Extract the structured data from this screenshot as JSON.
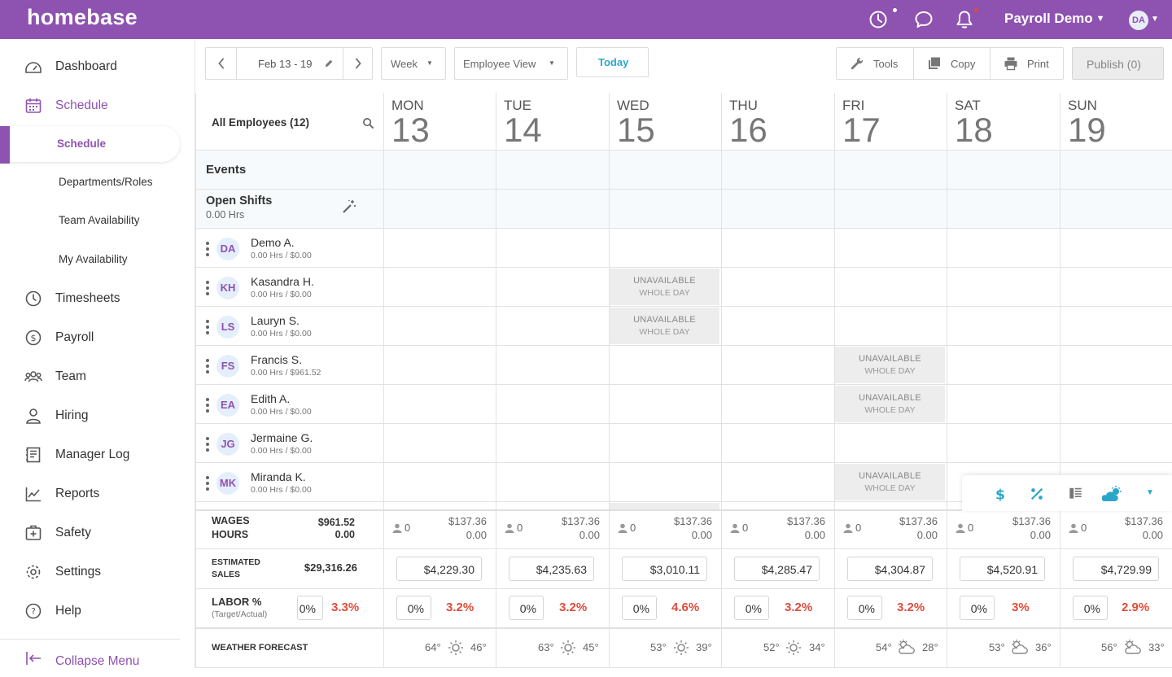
{
  "topbar": {
    "logo": "homebase",
    "account_name": "Payroll Demo",
    "avatar_initials": "DA",
    "colors": {
      "brand": "#8e52b0",
      "alert_dot": "#e04b3a"
    }
  },
  "sidebar": {
    "items": [
      {
        "label": "Dashboard",
        "icon": "dashboard-icon"
      },
      {
        "label": "Schedule",
        "icon": "calendar-icon"
      },
      {
        "label": "Timesheets",
        "icon": "clock-icon"
      },
      {
        "label": "Payroll",
        "icon": "dollar-circle-icon"
      },
      {
        "label": "Team",
        "icon": "team-icon"
      },
      {
        "label": "Hiring",
        "icon": "person-icon"
      },
      {
        "label": "Manager Log",
        "icon": "log-book-icon"
      },
      {
        "label": "Reports",
        "icon": "chart-icon"
      },
      {
        "label": "Safety",
        "icon": "first-aid-icon"
      },
      {
        "label": "Settings",
        "icon": "gear-icon"
      },
      {
        "label": "Help",
        "icon": "help-icon"
      }
    ],
    "schedule_sub": [
      "Schedule",
      "Departments/Roles",
      "Team Availability",
      "My Availability"
    ],
    "collapse_label": "Collapse Menu"
  },
  "toolbar": {
    "date_range": "Feb 13 - 19",
    "range_type": "Week",
    "view_type": "Employee View",
    "today": "Today",
    "tools": "Tools",
    "copy": "Copy",
    "print": "Print",
    "publish": "Publish (0)"
  },
  "grid": {
    "employee_filter": "All Employees (12)",
    "events_label": "Events",
    "open_shifts_label": "Open Shifts",
    "open_shifts_hours": "0.00 Hrs",
    "days": [
      {
        "name": "MON",
        "date": "13"
      },
      {
        "name": "TUE",
        "date": "14"
      },
      {
        "name": "WED",
        "date": "15"
      },
      {
        "name": "THU",
        "date": "16"
      },
      {
        "name": "FRI",
        "date": "17"
      },
      {
        "name": "SAT",
        "date": "18"
      },
      {
        "name": "SUN",
        "date": "19"
      }
    ],
    "employees": [
      {
        "initials": "DA",
        "name": "Demo A.",
        "summary": "0.00 Hrs / $0.00"
      },
      {
        "initials": "KH",
        "name": "Kasandra H.",
        "summary": "0.00 Hrs / $0.00"
      },
      {
        "initials": "LS",
        "name": "Lauryn S.",
        "summary": "0.00 Hrs / $0.00"
      },
      {
        "initials": "FS",
        "name": "Francis S.",
        "summary": "0.00 Hrs / $961.52"
      },
      {
        "initials": "EA",
        "name": "Edith A.",
        "summary": "0.00 Hrs / $0.00"
      },
      {
        "initials": "JG",
        "name": "Jermaine G.",
        "summary": "0.00 Hrs / $0.00"
      },
      {
        "initials": "MK",
        "name": "Miranda K.",
        "summary": "0.00 Hrs / $0.00"
      }
    ],
    "unavailable_title": "UNAVAILABLE",
    "unavailable_sub": "WHOLE DAY"
  },
  "footer": {
    "wages_label": "WAGES",
    "hours_label": "HOURS",
    "wages_total": "$961.52",
    "hours_total": "0.00",
    "est_sales_label1": "ESTIMATED",
    "est_sales_label2": "SALES",
    "est_sales_total": "$29,316.26",
    "labor_label": "LABOR %",
    "labor_sub": "(Target/Actual)",
    "labor_target_total": "0%",
    "labor_actual_total": "3.3%",
    "weather_label": "WEATHER FORECAST",
    "days": [
      {
        "count": "0",
        "wages": "$137.36",
        "hours": "0.00",
        "sales": "$4,229.30",
        "target": "0%",
        "actual": "3.2%",
        "high": "64°",
        "low": "46°",
        "weather": "sunny"
      },
      {
        "count": "0",
        "wages": "$137.36",
        "hours": "0.00",
        "sales": "$4,235.63",
        "target": "0%",
        "actual": "3.2%",
        "high": "63°",
        "low": "45°",
        "weather": "sunny"
      },
      {
        "count": "0",
        "wages": "$137.36",
        "hours": "0.00",
        "sales": "$3,010.11",
        "target": "0%",
        "actual": "4.6%",
        "high": "53°",
        "low": "39°",
        "weather": "sunny"
      },
      {
        "count": "0",
        "wages": "$137.36",
        "hours": "0.00",
        "sales": "$4,285.47",
        "target": "0%",
        "actual": "3.2%",
        "high": "52°",
        "low": "34°",
        "weather": "sunny"
      },
      {
        "count": "0",
        "wages": "$137.36",
        "hours": "0.00",
        "sales": "$4,304.87",
        "target": "0%",
        "actual": "3.2%",
        "high": "54°",
        "low": "28°",
        "weather": "partly-cloudy"
      },
      {
        "count": "0",
        "wages": "$137.36",
        "hours": "0.00",
        "sales": "$4,520.91",
        "target": "0%",
        "actual": "3%",
        "high": "53°",
        "low": "36°",
        "weather": "partly-cloudy"
      },
      {
        "count": "0",
        "wages": "$137.36",
        "hours": "0.00",
        "sales": "$4,729.99",
        "target": "0%",
        "actual": "2.9%",
        "high": "56°",
        "low": "33°",
        "weather": "partly-cloudy"
      }
    ]
  }
}
